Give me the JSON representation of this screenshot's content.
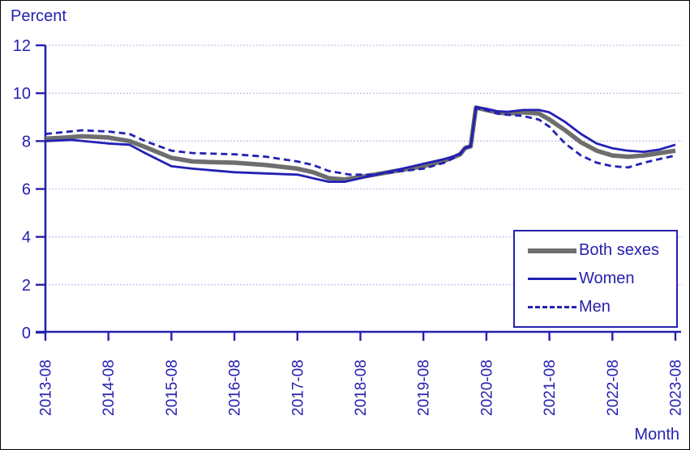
{
  "colors": {
    "navy": "#2621ae",
    "series_navy": "#2320b4",
    "series_gray": "#6e6e6e",
    "gridline": "#c7c0ec",
    "background": "#ffffff",
    "frame_border": "#000000"
  },
  "chart_data": {
    "type": "line",
    "title": "Percent",
    "xlabel": "Month",
    "ylabel": "",
    "ylim": [
      0,
      12
    ],
    "yticks": [
      0,
      2,
      4,
      6,
      8,
      10,
      12
    ],
    "xticks": [
      "2013-08",
      "2014-08",
      "2015-08",
      "2016-08",
      "2017-08",
      "2018-08",
      "2019-08",
      "2020-08",
      "2021-08",
      "2022-08",
      "2023-08"
    ],
    "x_range_months": [
      "2013-08",
      "2023-08"
    ],
    "grid": true,
    "legend_position": "inside-bottom-right",
    "series": [
      {
        "name": "Both sexes",
        "style": "solid-thick",
        "color": "#6e6e6e",
        "points": [
          [
            "2013-08",
            8.1
          ],
          [
            "2013-12",
            8.15
          ],
          [
            "2014-03",
            8.2
          ],
          [
            "2014-08",
            8.15
          ],
          [
            "2014-12",
            8.0
          ],
          [
            "2015-03",
            7.75
          ],
          [
            "2015-08",
            7.3
          ],
          [
            "2015-12",
            7.15
          ],
          [
            "2016-04",
            7.12
          ],
          [
            "2016-08",
            7.1
          ],
          [
            "2017-02",
            7.0
          ],
          [
            "2017-08",
            6.85
          ],
          [
            "2017-11",
            6.7
          ],
          [
            "2018-02",
            6.45
          ],
          [
            "2018-05",
            6.4
          ],
          [
            "2018-08",
            6.5
          ],
          [
            "2018-12",
            6.65
          ],
          [
            "2019-04",
            6.8
          ],
          [
            "2019-08",
            6.95
          ],
          [
            "2019-12",
            7.18
          ],
          [
            "2020-02",
            7.35
          ],
          [
            "2020-03",
            7.45
          ],
          [
            "2020-04",
            7.72
          ],
          [
            "2020-05",
            7.78
          ],
          [
            "2020-06",
            9.4
          ],
          [
            "2020-08",
            9.3
          ],
          [
            "2020-10",
            9.2
          ],
          [
            "2020-12",
            9.15
          ],
          [
            "2021-03",
            9.2
          ],
          [
            "2021-06",
            9.15
          ],
          [
            "2021-08",
            8.9
          ],
          [
            "2021-11",
            8.45
          ],
          [
            "2022-02",
            7.95
          ],
          [
            "2022-05",
            7.6
          ],
          [
            "2022-08",
            7.4
          ],
          [
            "2022-11",
            7.35
          ],
          [
            "2023-02",
            7.4
          ],
          [
            "2023-05",
            7.5
          ],
          [
            "2023-08",
            7.6
          ]
        ]
      },
      {
        "name": "Women",
        "style": "solid",
        "color": "#2320b4",
        "points": [
          [
            "2013-08",
            8.0
          ],
          [
            "2014-01",
            8.05
          ],
          [
            "2014-08",
            7.9
          ],
          [
            "2014-12",
            7.85
          ],
          [
            "2015-03",
            7.5
          ],
          [
            "2015-08",
            6.95
          ],
          [
            "2015-12",
            6.85
          ],
          [
            "2016-08",
            6.7
          ],
          [
            "2017-02",
            6.65
          ],
          [
            "2017-08",
            6.6
          ],
          [
            "2017-11",
            6.45
          ],
          [
            "2018-02",
            6.3
          ],
          [
            "2018-05",
            6.3
          ],
          [
            "2018-08",
            6.45
          ],
          [
            "2018-12",
            6.65
          ],
          [
            "2019-04",
            6.85
          ],
          [
            "2019-08",
            7.05
          ],
          [
            "2019-12",
            7.25
          ],
          [
            "2020-02",
            7.38
          ],
          [
            "2020-03",
            7.48
          ],
          [
            "2020-04",
            7.73
          ],
          [
            "2020-05",
            7.8
          ],
          [
            "2020-06",
            9.42
          ],
          [
            "2020-08",
            9.35
          ],
          [
            "2020-10",
            9.25
          ],
          [
            "2020-12",
            9.22
          ],
          [
            "2021-03",
            9.3
          ],
          [
            "2021-06",
            9.3
          ],
          [
            "2021-08",
            9.2
          ],
          [
            "2021-11",
            8.8
          ],
          [
            "2022-02",
            8.3
          ],
          [
            "2022-05",
            7.9
          ],
          [
            "2022-08",
            7.7
          ],
          [
            "2022-11",
            7.6
          ],
          [
            "2023-02",
            7.55
          ],
          [
            "2023-05",
            7.65
          ],
          [
            "2023-08",
            7.85
          ]
        ]
      },
      {
        "name": "Men",
        "style": "dashed",
        "color": "#2320b4",
        "points": [
          [
            "2013-08",
            8.3
          ],
          [
            "2014-03",
            8.45
          ],
          [
            "2014-08",
            8.4
          ],
          [
            "2014-12",
            8.3
          ],
          [
            "2015-03",
            8.0
          ],
          [
            "2015-08",
            7.6
          ],
          [
            "2015-12",
            7.5
          ],
          [
            "2016-08",
            7.45
          ],
          [
            "2017-02",
            7.35
          ],
          [
            "2017-08",
            7.15
          ],
          [
            "2017-11",
            7.0
          ],
          [
            "2018-02",
            6.75
          ],
          [
            "2018-06",
            6.6
          ],
          [
            "2018-10",
            6.6
          ],
          [
            "2019-02",
            6.7
          ],
          [
            "2019-08",
            6.85
          ],
          [
            "2019-12",
            7.1
          ],
          [
            "2020-02",
            7.32
          ],
          [
            "2020-03",
            7.45
          ],
          [
            "2020-04",
            7.7
          ],
          [
            "2020-05",
            7.77
          ],
          [
            "2020-06",
            9.38
          ],
          [
            "2020-08",
            9.3
          ],
          [
            "2020-10",
            9.15
          ],
          [
            "2020-12",
            9.1
          ],
          [
            "2021-03",
            9.05
          ],
          [
            "2021-06",
            8.9
          ],
          [
            "2021-08",
            8.6
          ],
          [
            "2021-11",
            7.9
          ],
          [
            "2022-02",
            7.4
          ],
          [
            "2022-05",
            7.1
          ],
          [
            "2022-08",
            6.95
          ],
          [
            "2022-11",
            6.9
          ],
          [
            "2023-02",
            7.1
          ],
          [
            "2023-05",
            7.25
          ],
          [
            "2023-08",
            7.4
          ]
        ]
      }
    ]
  }
}
